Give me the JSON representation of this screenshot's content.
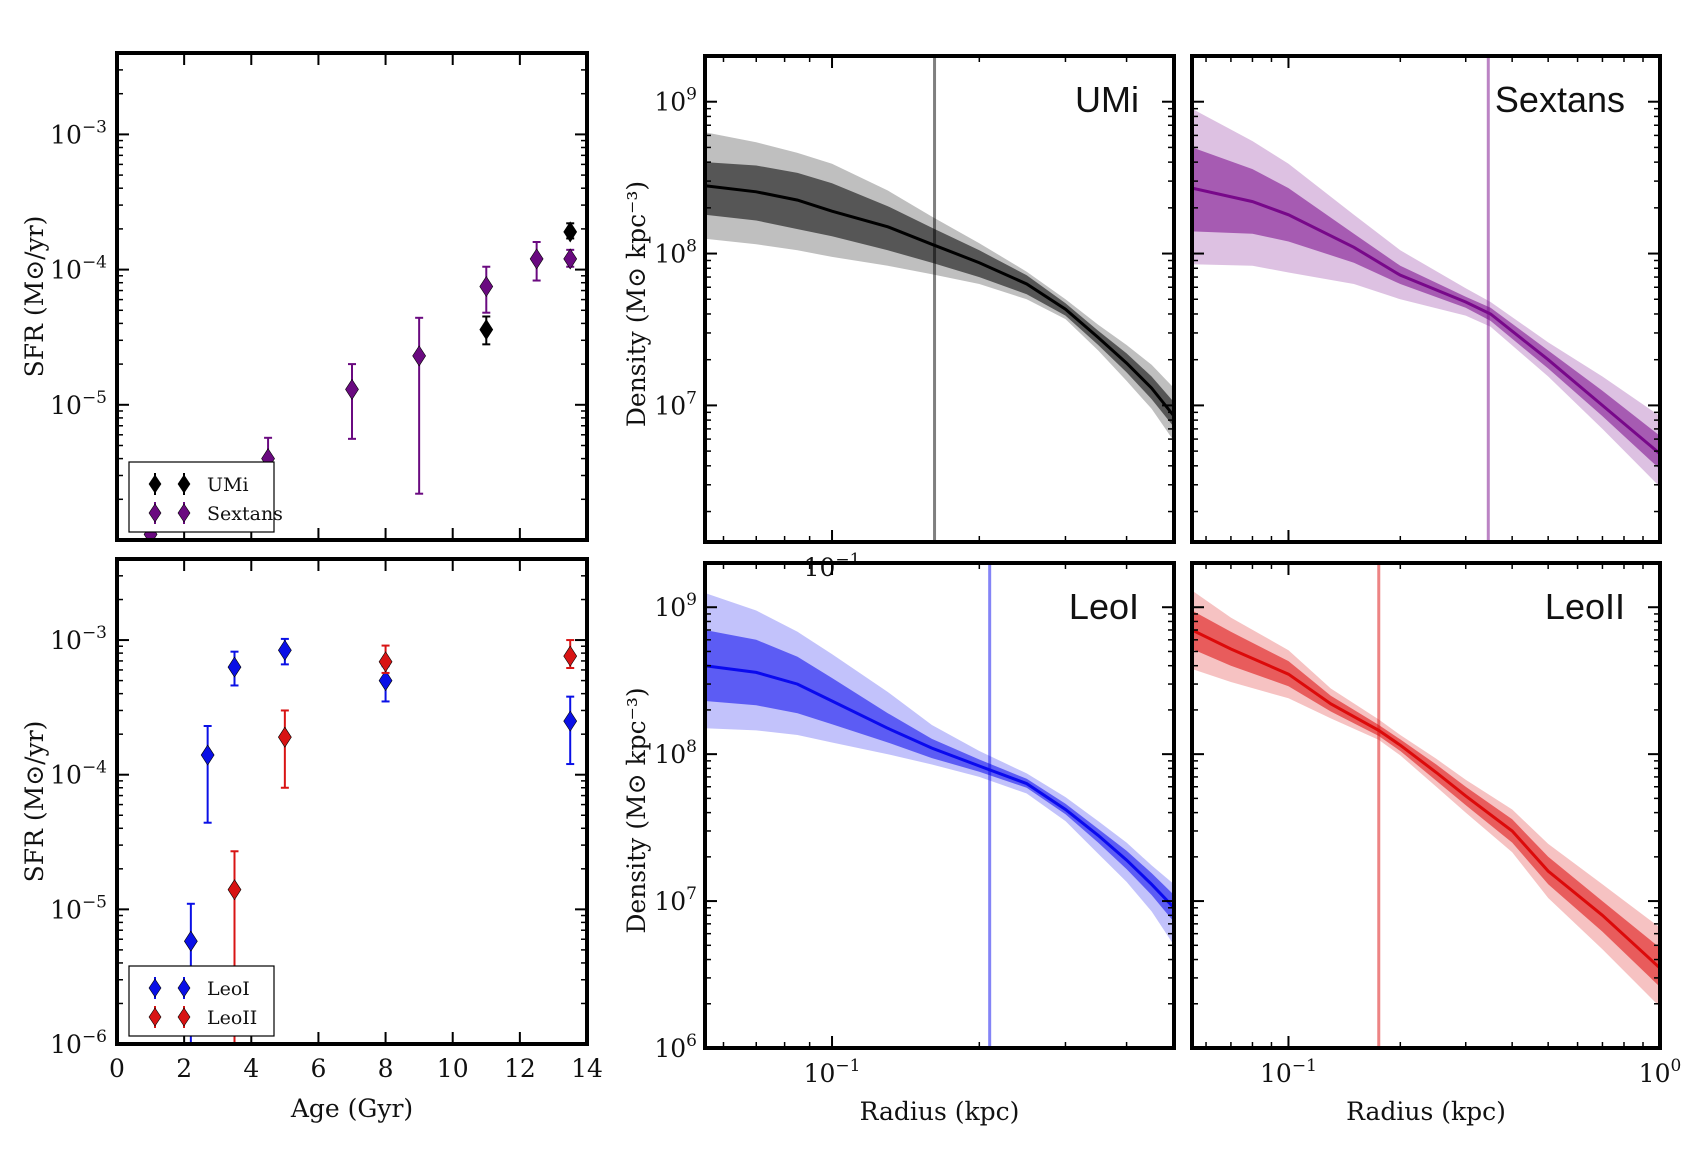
{
  "chart_data": [
    {
      "id": "sfr-top",
      "type": "scatter",
      "xlabel": "",
      "ylabel": "SFR (M⊙/yr)",
      "yscale": "log",
      "xlim": [
        0,
        14
      ],
      "ylim": [
        1e-06,
        0.004
      ],
      "x_ticks": [
        0,
        2,
        4,
        6,
        8,
        10,
        12,
        14
      ],
      "y_ticks": [
        {
          "value": 1e-05,
          "base": "10",
          "exp": "−5"
        },
        {
          "value": 0.0001,
          "base": "10",
          "exp": "−4"
        },
        {
          "value": 0.001,
          "base": "10",
          "exp": "−3"
        }
      ],
      "legend": {
        "position": "lower-left",
        "entries": [
          "UMi",
          "Sextans"
        ]
      },
      "series": [
        {
          "name": "UMi",
          "color": "#000000",
          "points": [
            {
              "x": 11.0,
              "y": 3.6e-05,
              "lo": 2.8e-05,
              "hi": 4.5e-05
            },
            {
              "x": 13.5,
              "y": 0.00019,
              "lo": 0.00017,
              "hi": 0.00022
            }
          ]
        },
        {
          "name": "Sextans",
          "color": "#6a0a80",
          "points": [
            {
              "x": 1.0,
              "y": 1.1e-06,
              "lo": 1e-06,
              "hi": 1.3e-06
            },
            {
              "x": 4.5,
              "y": 4e-06,
              "lo": 2.8e-06,
              "hi": 5.7e-06
            },
            {
              "x": 7.0,
              "y": 1.3e-05,
              "lo": 5.6e-06,
              "hi": 2e-05
            },
            {
              "x": 9.0,
              "y": 2.3e-05,
              "lo": 2.2e-06,
              "hi": 4.4e-05
            },
            {
              "x": 11.0,
              "y": 7.5e-05,
              "lo": 4.8e-05,
              "hi": 0.000105
            },
            {
              "x": 12.5,
              "y": 0.00012,
              "lo": 8.3e-05,
              "hi": 0.00016
            },
            {
              "x": 13.5,
              "y": 0.00012,
              "lo": 0.000105,
              "hi": 0.00014
            }
          ]
        }
      ]
    },
    {
      "id": "sfr-bottom",
      "type": "scatter",
      "xlabel": "Age (Gyr)",
      "ylabel": "SFR (M⊙/yr)",
      "yscale": "log",
      "xlim": [
        0,
        14
      ],
      "ylim": [
        1e-06,
        0.004
      ],
      "x_ticks": [
        0,
        2,
        4,
        6,
        8,
        10,
        12,
        14
      ],
      "y_ticks": [
        {
          "value": 1e-06,
          "base": "10",
          "exp": "−6"
        },
        {
          "value": 1e-05,
          "base": "10",
          "exp": "−5"
        },
        {
          "value": 0.0001,
          "base": "10",
          "exp": "−4"
        },
        {
          "value": 0.001,
          "base": "10",
          "exp": "−3"
        }
      ],
      "legend": {
        "position": "lower-left",
        "entries": [
          "LeoI",
          "LeoII"
        ]
      },
      "series": [
        {
          "name": "LeoI",
          "color": "#0a10e6",
          "points": [
            {
              "x": 2.2,
              "y": 5.8e-06,
              "lo": 1e-06,
              "hi": 1.1e-05
            },
            {
              "x": 2.7,
              "y": 0.00014,
              "lo": 4.4e-05,
              "hi": 0.00023
            },
            {
              "x": 3.5,
              "y": 0.00063,
              "lo": 0.00046,
              "hi": 0.00082
            },
            {
              "x": 5.0,
              "y": 0.00084,
              "lo": 0.00066,
              "hi": 0.00102
            },
            {
              "x": 8.0,
              "y": 0.0005,
              "lo": 0.00035,
              "hi": 0.00064
            },
            {
              "x": 13.5,
              "y": 0.00025,
              "lo": 0.00012,
              "hi": 0.00038
            }
          ]
        },
        {
          "name": "LeoII",
          "color": "#d81414",
          "points": [
            {
              "x": 3.5,
              "y": 1.4e-05,
              "lo": 1e-06,
              "hi": 2.7e-05
            },
            {
              "x": 5.0,
              "y": 0.00019,
              "lo": 8e-05,
              "hi": 0.0003
            },
            {
              "x": 8.0,
              "y": 0.00069,
              "lo": 0.00057,
              "hi": 0.00091
            },
            {
              "x": 13.5,
              "y": 0.00076,
              "lo": 0.00062,
              "hi": 0.001
            }
          ]
        }
      ]
    },
    {
      "id": "density-umi",
      "type": "line",
      "name": "UMi",
      "color": "#000000",
      "xscale": "log",
      "yscale": "log",
      "xlim": [
        0.055,
        0.5
      ],
      "ylim": [
        1260000.0,
        2000000000.0
      ],
      "ylabel": "Density (M⊙ kpc⁻³)",
      "xlabel": "",
      "x_ticks": [
        {
          "value": 0.1,
          "base": "10",
          "exp": "−1"
        }
      ],
      "y_ticks": [
        {
          "value": 10000000.0,
          "base": "10",
          "exp": "7"
        },
        {
          "value": 100000000.0,
          "base": "10",
          "exp": "8"
        },
        {
          "value": 1000000000.0,
          "base": "10",
          "exp": "9"
        }
      ],
      "vline_x": 0.162,
      "x": [
        0.055,
        0.07,
        0.085,
        0.1,
        0.13,
        0.16,
        0.2,
        0.25,
        0.3,
        0.35,
        0.4,
        0.45,
        0.5
      ],
      "median": [
        280000000.0,
        255000000.0,
        225000000.0,
        190000000.0,
        150000000.0,
        115000000.0,
        87000000.0,
        63000000.0,
        43000000.0,
        28000000.0,
        19000000.0,
        13000000.0,
        8500000.0
      ],
      "inner_band": [
        [
          180000000.0,
          400000000.0
        ],
        [
          165000000.0,
          380000000.0
        ],
        [
          145000000.0,
          340000000.0
        ],
        [
          130000000.0,
          290000000.0
        ],
        [
          105000000.0,
          205000000.0
        ],
        [
          87000000.0,
          148000000.0
        ],
        [
          70000000.0,
          105000000.0
        ],
        [
          54000000.0,
          72000000.0
        ],
        [
          39000000.0,
          47000000.0
        ],
        [
          25000000.0,
          31000000.0
        ],
        [
          16500000.0,
          22000000.0
        ],
        [
          11000000.0,
          15500000.0
        ],
        [
          7200000.0,
          10500000.0
        ]
      ],
      "outer_band": [
        [
          125000000.0,
          630000000.0
        ],
        [
          115000000.0,
          540000000.0
        ],
        [
          105000000.0,
          460000000.0
        ],
        [
          95000000.0,
          390000000.0
        ],
        [
          83000000.0,
          260000000.0
        ],
        [
          73000000.0,
          175000000.0
        ],
        [
          63000000.0,
          117000000.0
        ],
        [
          50000000.0,
          76000000.0
        ],
        [
          37000000.0,
          50000000.0
        ],
        [
          23000000.0,
          34000000.0
        ],
        [
          14500000.0,
          25000000.0
        ],
        [
          9500000.0,
          18500000.0
        ],
        [
          5800000.0,
          13000000.0
        ]
      ]
    },
    {
      "id": "density-sextans",
      "type": "line",
      "name": "Sextans",
      "color": "#78088a",
      "xscale": "log",
      "yscale": "log",
      "xlim": [
        0.055,
        1.0
      ],
      "ylim": [
        1260000.0,
        2000000000.0
      ],
      "ylabel": "",
      "xlabel": "",
      "x_ticks": [],
      "y_ticks": [],
      "vline_x": 0.345,
      "x": [
        0.055,
        0.08,
        0.1,
        0.15,
        0.2,
        0.3,
        0.35,
        0.5,
        0.7,
        1.0
      ],
      "median": [
        270000000.0,
        220000000.0,
        180000000.0,
        110000000.0,
        72000000.0,
        48000000.0,
        40000000.0,
        20000000.0,
        10000000.0,
        4800000.0
      ],
      "inner_band": [
        [
          140000000.0,
          500000000.0
        ],
        [
          135000000.0,
          360000000.0
        ],
        [
          120000000.0,
          270000000.0
        ],
        [
          87000000.0,
          135000000.0
        ],
        [
          63000000.0,
          83000000.0
        ],
        [
          44000000.0,
          52000000.0
        ],
        [
          36000000.0,
          44000000.0
        ],
        [
          17500000.0,
          23000000.0
        ],
        [
          8500000.0,
          12500000.0
        ],
        [
          3800000.0,
          6300000.0
        ]
      ],
      "outer_band": [
        [
          85000000.0,
          900000000.0
        ],
        [
          83000000.0,
          550000000.0
        ],
        [
          75000000.0,
          390000000.0
        ],
        [
          63000000.0,
          180000000.0
        ],
        [
          50000000.0,
          105000000.0
        ],
        [
          39000000.0,
          59000000.0
        ],
        [
          33000000.0,
          48000000.0
        ],
        [
          15500000.0,
          26000000.0
        ],
        [
          7000000.0,
          15500000.0
        ],
        [
          2900000.0,
          8500000.0
        ]
      ]
    },
    {
      "id": "density-leoi",
      "type": "line",
      "name": "LeoI",
      "color": "#0a0aee",
      "xscale": "log",
      "yscale": "log",
      "xlim": [
        0.055,
        0.5
      ],
      "ylim": [
        1000000.0,
        2000000000.0
      ],
      "ylabel": "Density (M⊙ kpc⁻³)",
      "xlabel": "Radius (kpc)",
      "x_ticks": [
        {
          "value": 0.1,
          "base": "10",
          "exp": "−1"
        }
      ],
      "y_ticks": [
        {
          "value": 1000000.0,
          "base": "10",
          "exp": "6"
        },
        {
          "value": 10000000.0,
          "base": "10",
          "exp": "7"
        },
        {
          "value": 100000000.0,
          "base": "10",
          "exp": "8"
        },
        {
          "value": 1000000000.0,
          "base": "10",
          "exp": "9"
        }
      ],
      "vline_x": 0.21,
      "x": [
        0.055,
        0.07,
        0.085,
        0.1,
        0.13,
        0.16,
        0.2,
        0.25,
        0.3,
        0.35,
        0.4,
        0.45,
        0.5
      ],
      "median": [
        400000000.0,
        360000000.0,
        300000000.0,
        230000000.0,
        150000000.0,
        110000000.0,
        83000000.0,
        63000000.0,
        42000000.0,
        28000000.0,
        19000000.0,
        13000000.0,
        9000000.0
      ],
      "inner_band": [
        [
          230000000.0,
          700000000.0
        ],
        [
          215000000.0,
          600000000.0
        ],
        [
          190000000.0,
          460000000.0
        ],
        [
          160000000.0,
          330000000.0
        ],
        [
          120000000.0,
          190000000.0
        ],
        [
          94000000.0,
          127000000.0
        ],
        [
          76000000.0,
          92000000.0
        ],
        [
          59000000.0,
          68000000.0
        ],
        [
          39000000.0,
          46000000.0
        ],
        [
          25000000.0,
          31000000.0
        ],
        [
          16500000.0,
          22000000.0
        ],
        [
          11000000.0,
          15500000.0
        ],
        [
          7200000.0,
          11000000.0
        ]
      ],
      "outer_band": [
        [
          150000000.0,
          1250000000.0
        ],
        [
          145000000.0,
          950000000.0
        ],
        [
          135000000.0,
          680000000.0
        ],
        [
          120000000.0,
          480000000.0
        ],
        [
          100000000.0,
          265000000.0
        ],
        [
          85000000.0,
          158000000.0
        ],
        [
          70000000.0,
          105000000.0
        ],
        [
          54000000.0,
          74000000.0
        ],
        [
          35000000.0,
          51000000.0
        ],
        [
          21000000.0,
          35000000.0
        ],
        [
          13500000.0,
          25000000.0
        ],
        [
          8500000.0,
          17500000.0
        ],
        [
          5000000.0,
          13000000.0
        ]
      ]
    },
    {
      "id": "density-leoii",
      "type": "line",
      "name": "LeoII",
      "color": "#dc0a0a",
      "xscale": "log",
      "yscale": "log",
      "xlim": [
        0.055,
        1.0
      ],
      "ylim": [
        1000000.0,
        2000000000.0
      ],
      "ylabel": "",
      "xlabel": "Radius (kpc)",
      "x_ticks": [
        {
          "value": 0.1,
          "base": "10",
          "exp": "−1"
        },
        {
          "value": 1.0,
          "base": "10",
          "exp": "0"
        }
      ],
      "y_ticks": [],
      "vline_x": 0.175,
      "x": [
        0.055,
        0.07,
        0.1,
        0.13,
        0.175,
        0.2,
        0.25,
        0.3,
        0.4,
        0.5,
        0.7,
        1.0
      ],
      "median": [
        700000000.0,
        520000000.0,
        350000000.0,
        220000000.0,
        145000000.0,
        115000000.0,
        75000000.0,
        52000000.0,
        30000000.0,
        16000000.0,
        8000000.0,
        3500000.0
      ],
      "inner_band": [
        [
          520000000.0,
          950000000.0
        ],
        [
          400000000.0,
          680000000.0
        ],
        [
          290000000.0,
          430000000.0
        ],
        [
          195000000.0,
          250000000.0
        ],
        [
          133000000.0,
          158000000.0
        ],
        [
          105000000.0,
          126000000.0
        ],
        [
          66000000.0,
          85000000.0
        ],
        [
          45000000.0,
          60000000.0
        ],
        [
          25000000.0,
          36000000.0
        ],
        [
          13000000.0,
          20000000.0
        ],
        [
          6200000.0,
          10000000.0
        ],
        [
          2600000.0,
          4800000.0
        ]
      ],
      "outer_band": [
        [
          380000000.0,
          1300000000.0
        ],
        [
          310000000.0,
          850000000.0
        ],
        [
          240000000.0,
          510000000.0
        ],
        [
          175000000.0,
          280000000.0
        ],
        [
          125000000.0,
          172000000.0
        ],
        [
          98000000.0,
          135000000.0
        ],
        [
          60000000.0,
          93000000.0
        ],
        [
          40000000.0,
          67000000.0
        ],
        [
          21500000.0,
          42000000.0
        ],
        [
          10500000.0,
          24500000.0
        ],
        [
          4700000.0,
          13000000.0
        ],
        [
          1900000.0,
          6600000.0
        ]
      ]
    }
  ]
}
